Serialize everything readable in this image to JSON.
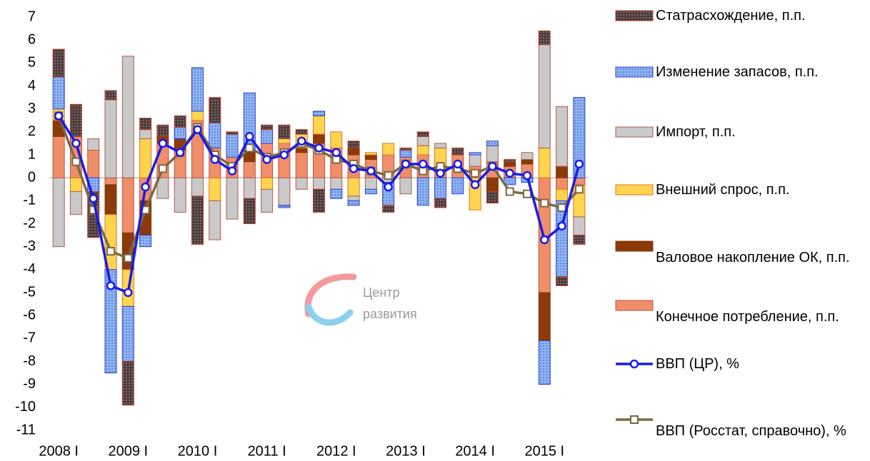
{
  "chart_data": {
    "type": "stacked-bar-line",
    "categories": [
      "2008 I",
      null,
      null,
      null,
      "2009 I",
      null,
      null,
      null,
      "2010 I",
      null,
      null,
      null,
      "2011 I",
      null,
      null,
      null,
      "2012 I",
      null,
      null,
      null,
      "2013 I",
      null,
      null,
      null,
      "2014 I",
      null,
      null,
      null,
      "2015 I",
      null,
      null
    ],
    "ylim": [
      -11,
      7
    ],
    "yticks": [
      -11,
      -10,
      -9,
      -8,
      -7,
      -6,
      -5,
      -4,
      -3,
      -2,
      -1,
      0,
      1,
      2,
      3,
      4,
      5,
      6,
      7
    ],
    "annotations": [
      "Центр",
      "развития"
    ],
    "series": [
      {
        "name": "Статрасхождение, п.п.",
        "color": "#4d3b3b",
        "edgecolor": "#c0392b",
        "pattern": "dots",
        "values": [
          1.2,
          1.4,
          -2.0,
          0.4,
          -1.9,
          0.5,
          0.5,
          0.5,
          -2.1,
          1.1,
          0.1,
          -1.1,
          0.2,
          0.6,
          0.2,
          -1.0,
          0,
          0.3,
          0,
          -0.3,
          0.1,
          0.2,
          -0.4,
          0.3,
          0,
          -0.5,
          0.1,
          0,
          0.6,
          -0.4,
          -0.4
        ]
      },
      {
        "name": "Изменение запасов, п.п.",
        "color": "#8fb4f0",
        "edgecolor": "#2a3fd0",
        "pattern": "dots",
        "values": [
          1.4,
          0,
          -0.6,
          -4.5,
          -2.4,
          -0.5,
          0,
          0.5,
          1.9,
          1.1,
          1.0,
          2.5,
          0.6,
          -0.1,
          0,
          0.2,
          -0.4,
          -0.2,
          -0.2,
          -1.0,
          0.3,
          -1.2,
          -0.9,
          -0.7,
          0.1,
          0.2,
          -0.3,
          -0.2,
          -1.9,
          -3.3,
          3.5
        ]
      },
      {
        "name": "Импорт,  п.п.",
        "color": "#c9c9c9",
        "edgecolor": "#b05a4a",
        "pattern": "solid",
        "values": [
          -3.0,
          -1.0,
          0.5,
          3.4,
          5.3,
          0.4,
          -0.9,
          -1.5,
          -0.8,
          -1.7,
          -1.8,
          -0.9,
          -1.0,
          -1.2,
          -0.5,
          -0.5,
          -0.5,
          -0.2,
          -0.5,
          -0.2,
          -0.7,
          0.4,
          0.2,
          0,
          0.5,
          0.7,
          0,
          0.3,
          4.5,
          2.6,
          -0.8
        ]
      },
      {
        "name": "Внешний спрос, п.п.",
        "color": "#ffd54f",
        "edgecolor": "#e07020",
        "pattern": "solid",
        "values": [
          0.5,
          -0.6,
          0,
          -2.4,
          -1.6,
          1.7,
          0,
          0,
          0.4,
          -1.0,
          0,
          0,
          -0.5,
          0.2,
          0.6,
          0.8,
          0.7,
          -0.8,
          0.1,
          0.5,
          0,
          0.4,
          0.9,
          0,
          -1.4,
          0,
          0,
          0,
          1.3,
          -0.5,
          -1.4
        ]
      },
      {
        "name": "Валовое накопление ОК, п.п.",
        "color": "#8b3a0a",
        "edgecolor": "#8b3a0a",
        "pattern": "solid",
        "values": [
          0.7,
          0,
          0,
          -1.3,
          -1.6,
          -1.5,
          0.3,
          0.5,
          0,
          0,
          0,
          0.5,
          0,
          0,
          0.2,
          0.4,
          0,
          0.3,
          0.2,
          0,
          0,
          0,
          0,
          0,
          0,
          -0.6,
          0.2,
          0.2,
          -2.1,
          0.5,
          0
        ]
      },
      {
        "name": "Конечное потребление, п.п.",
        "color": "#ef8f6a",
        "edgecolor": "#c0503a",
        "pattern": "solid",
        "values": [
          1.8,
          1.8,
          1.2,
          -0.3,
          -2.4,
          -1.0,
          1.5,
          1.2,
          2.5,
          1.3,
          0.9,
          0.7,
          1.5,
          1.5,
          1.1,
          1.5,
          1.3,
          1.0,
          0.8,
          1.0,
          0.9,
          1.0,
          0.4,
          1.0,
          0.5,
          0.7,
          0.5,
          0.6,
          -5.0,
          -0.5,
          -0.3
        ]
      }
    ],
    "lines": [
      {
        "name": "ВВП (ЦР), %",
        "color": "#1a1ae6",
        "marker": "circle",
        "values": [
          2.7,
          1.5,
          -0.9,
          -4.7,
          -5.0,
          -0.4,
          1.5,
          1.1,
          2.1,
          0.8,
          0.3,
          1.8,
          0.8,
          1.0,
          1.6,
          1.3,
          1.1,
          0.4,
          0.3,
          -0.4,
          0.6,
          0.6,
          0.2,
          0.6,
          -0.3,
          0.5,
          0.2,
          0.1,
          -2.7,
          -2.1,
          0.6
        ]
      },
      {
        "name": "ВВП (Росстат, справочно), %",
        "color": "#7a6a45",
        "marker": "square",
        "values": [
          2.7,
          0.7,
          -1.4,
          -3.2,
          -3.5,
          -1.4,
          0.4,
          1.1,
          2.2,
          1.0,
          0.5,
          1.3,
          0.9,
          1.1,
          1.5,
          1.2,
          0.8,
          0.6,
          0.3,
          0.1,
          0.6,
          0.3,
          0.5,
          0.4,
          0.2,
          0.5,
          -0.6,
          -0.7,
          -1.1,
          -1.3,
          -0.5
        ]
      }
    ]
  }
}
